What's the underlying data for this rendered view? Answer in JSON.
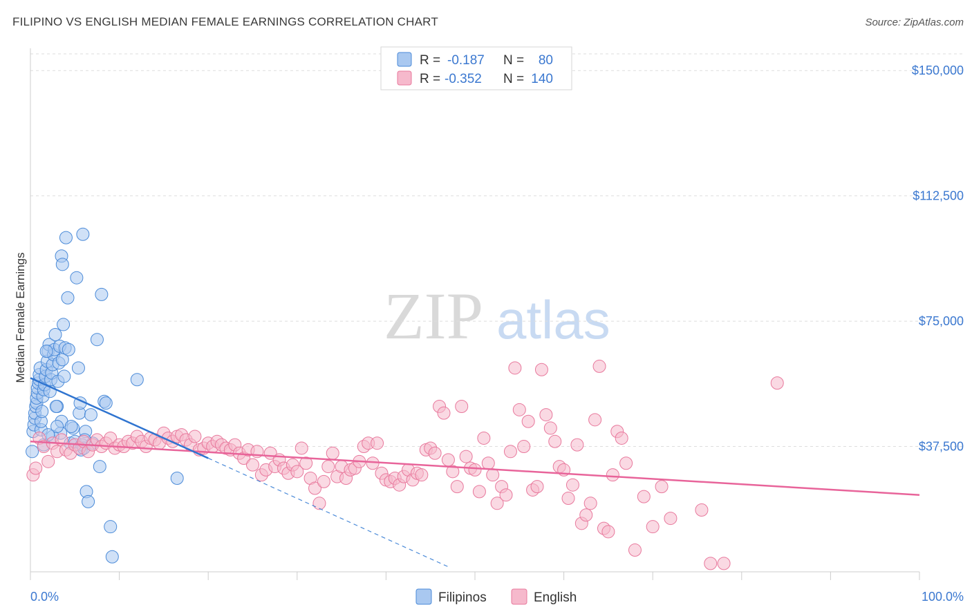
{
  "header": {
    "title": "FILIPINO VS ENGLISH MEDIAN FEMALE EARNINGS CORRELATION CHART",
    "source": "Source: ZipAtlas.com"
  },
  "watermark": {
    "zip": "ZIP",
    "atlas": "atlas"
  },
  "colors": {
    "filipino_fill": "#a9c8f0",
    "filipino_stroke": "#4a8ad8",
    "filipino_line": "#2f74d0",
    "english_fill": "#f6b9cc",
    "english_stroke": "#e8789c",
    "english_line": "#e8649a",
    "tick_text": "#3b78d0",
    "grid": "#dddddd"
  },
  "legend": {
    "rows": [
      {
        "r_label": "R =",
        "r_value": "-0.187",
        "n_label": "N =",
        "n_value": "80"
      },
      {
        "r_label": "R =",
        "r_value": "-0.352",
        "n_label": "N =",
        "n_value": "140"
      }
    ]
  },
  "chart_data": {
    "type": "scatter",
    "title": "FILIPINO VS ENGLISH MEDIAN FEMALE EARNINGS CORRELATION CHART",
    "xlabel": "",
    "ylabel": "Median Female Earnings",
    "xlim": [
      0,
      100
    ],
    "ylim": [
      0,
      155000
    ],
    "x_tick_labels": [
      "0.0%",
      "100.0%"
    ],
    "y_ticks": [
      37500,
      75000,
      112500,
      150000
    ],
    "y_tick_labels": [
      "$37,500",
      "$75,000",
      "$112,500",
      "$150,000"
    ],
    "grid": "horizontal dashed",
    "legend_position": "top-center",
    "series": [
      {
        "name": "Filipinos",
        "r": -0.187,
        "n": 80,
        "trend": {
          "x": [
            0,
            20
          ],
          "y": [
            58000,
            34000
          ],
          "extended_x": [
            20,
            47
          ],
          "extended_y": [
            34000,
            1500
          ]
        },
        "points": [
          [
            0.2,
            36000
          ],
          [
            0.3,
            42000
          ],
          [
            0.4,
            44000
          ],
          [
            0.5,
            46000
          ],
          [
            0.5,
            47500
          ],
          [
            0.6,
            49500
          ],
          [
            0.7,
            50500
          ],
          [
            0.7,
            52000
          ],
          [
            0.8,
            53500
          ],
          [
            0.8,
            55000
          ],
          [
            0.9,
            56500
          ],
          [
            1.0,
            57500
          ],
          [
            1.0,
            59000
          ],
          [
            1.1,
            61000
          ],
          [
            1.2,
            42500
          ],
          [
            1.2,
            45000
          ],
          [
            1.3,
            48000
          ],
          [
            1.4,
            52500
          ],
          [
            1.5,
            54500
          ],
          [
            1.6,
            56000
          ],
          [
            1.7,
            58500
          ],
          [
            1.8,
            60500
          ],
          [
            1.9,
            63000
          ],
          [
            2.0,
            66000
          ],
          [
            2.1,
            68000
          ],
          [
            2.2,
            54000
          ],
          [
            2.3,
            57500
          ],
          [
            2.4,
            59500
          ],
          [
            2.5,
            62000
          ],
          [
            2.6,
            65000
          ],
          [
            2.7,
            66500
          ],
          [
            2.8,
            71000
          ],
          [
            3.0,
            49500
          ],
          [
            3.1,
            57000
          ],
          [
            3.2,
            62500
          ],
          [
            3.3,
            67500
          ],
          [
            3.4,
            41500
          ],
          [
            3.5,
            45000
          ],
          [
            3.6,
            63500
          ],
          [
            3.7,
            74000
          ],
          [
            3.8,
            58500
          ],
          [
            3.9,
            67000
          ],
          [
            4.0,
            100000
          ],
          [
            4.2,
            82000
          ],
          [
            4.3,
            66500
          ],
          [
            2.5,
            40500
          ],
          [
            3.0,
            43500
          ],
          [
            3.5,
            94500
          ],
          [
            3.6,
            92000
          ],
          [
            4.5,
            38500
          ],
          [
            4.8,
            43000
          ],
          [
            5.0,
            39000
          ],
          [
            5.2,
            88000
          ],
          [
            5.4,
            61000
          ],
          [
            5.5,
            47500
          ],
          [
            5.6,
            50500
          ],
          [
            5.7,
            36500
          ],
          [
            5.8,
            38000
          ],
          [
            6.0,
            37000
          ],
          [
            6.2,
            42000
          ],
          [
            6.3,
            24000
          ],
          [
            6.5,
            21000
          ],
          [
            6.8,
            47000
          ],
          [
            7.0,
            38500
          ],
          [
            5.9,
            101000
          ],
          [
            7.5,
            69500
          ],
          [
            7.8,
            31500
          ],
          [
            8.0,
            83000
          ],
          [
            8.3,
            51000
          ],
          [
            8.5,
            50500
          ],
          [
            9.0,
            13500
          ],
          [
            9.2,
            4500
          ],
          [
            12.0,
            57500
          ],
          [
            16.5,
            28000
          ],
          [
            1.5,
            38000
          ],
          [
            2.0,
            41000
          ],
          [
            4.6,
            43500
          ],
          [
            6.1,
            39500
          ],
          [
            1.8,
            66000
          ],
          [
            2.9,
            49500
          ]
        ]
      },
      {
        "name": "English",
        "r": -0.352,
        "n": 140,
        "trend": {
          "x": [
            0,
            100
          ],
          "y": [
            39000,
            23000
          ]
        },
        "points": [
          [
            0.3,
            29000
          ],
          [
            0.6,
            31000
          ],
          [
            1.0,
            40000
          ],
          [
            1.5,
            37500
          ],
          [
            2.0,
            33000
          ],
          [
            2.5,
            38500
          ],
          [
            3.0,
            36000
          ],
          [
            3.5,
            39500
          ],
          [
            4.0,
            36500
          ],
          [
            4.5,
            35500
          ],
          [
            5.0,
            38000
          ],
          [
            5.5,
            37000
          ],
          [
            6.0,
            39000
          ],
          [
            6.5,
            36000
          ],
          [
            7.0,
            38000
          ],
          [
            7.5,
            39500
          ],
          [
            8.0,
            37500
          ],
          [
            8.5,
            38500
          ],
          [
            9.0,
            40000
          ],
          [
            9.5,
            37000
          ],
          [
            10.0,
            38000
          ],
          [
            10.5,
            37500
          ],
          [
            11.0,
            39000
          ],
          [
            11.5,
            38500
          ],
          [
            12.0,
            40500
          ],
          [
            12.5,
            39000
          ],
          [
            13.0,
            37500
          ],
          [
            13.5,
            40000
          ],
          [
            14.0,
            39500
          ],
          [
            14.5,
            38500
          ],
          [
            15.0,
            41500
          ],
          [
            15.5,
            40000
          ],
          [
            16.0,
            39000
          ],
          [
            16.5,
            40500
          ],
          [
            17.0,
            41000
          ],
          [
            17.5,
            39500
          ],
          [
            18.0,
            38000
          ],
          [
            18.5,
            40500
          ],
          [
            19.0,
            36500
          ],
          [
            19.5,
            37000
          ],
          [
            20.0,
            38500
          ],
          [
            20.5,
            37500
          ],
          [
            21.0,
            39000
          ],
          [
            21.5,
            38000
          ],
          [
            22.0,
            37000
          ],
          [
            22.5,
            36500
          ],
          [
            23.0,
            38000
          ],
          [
            23.5,
            35500
          ],
          [
            24.0,
            34000
          ],
          [
            24.5,
            36500
          ],
          [
            25.0,
            32000
          ],
          [
            25.5,
            36000
          ],
          [
            26.0,
            29000
          ],
          [
            26.5,
            30500
          ],
          [
            27.0,
            35500
          ],
          [
            27.5,
            31500
          ],
          [
            28.0,
            33500
          ],
          [
            28.5,
            31000
          ],
          [
            29.0,
            29500
          ],
          [
            29.5,
            32000
          ],
          [
            30.0,
            30000
          ],
          [
            30.5,
            37000
          ],
          [
            31.0,
            32500
          ],
          [
            31.5,
            28000
          ],
          [
            32.0,
            25000
          ],
          [
            32.5,
            20500
          ],
          [
            33.0,
            27000
          ],
          [
            33.5,
            31500
          ],
          [
            34.0,
            35500
          ],
          [
            34.5,
            28500
          ],
          [
            35.0,
            31500
          ],
          [
            35.5,
            28000
          ],
          [
            36.0,
            30500
          ],
          [
            36.5,
            31000
          ],
          [
            37.0,
            33000
          ],
          [
            37.5,
            37500
          ],
          [
            38.0,
            38500
          ],
          [
            38.5,
            32500
          ],
          [
            39.0,
            38500
          ],
          [
            39.5,
            29500
          ],
          [
            40.0,
            27500
          ],
          [
            40.5,
            27000
          ],
          [
            41.0,
            28000
          ],
          [
            41.5,
            26000
          ],
          [
            42.0,
            28500
          ],
          [
            42.5,
            30500
          ],
          [
            43.0,
            27500
          ],
          [
            43.5,
            29500
          ],
          [
            44.0,
            29000
          ],
          [
            44.5,
            36500
          ],
          [
            45.0,
            37000
          ],
          [
            45.5,
            35500
          ],
          [
            46.0,
            49500
          ],
          [
            46.5,
            47500
          ],
          [
            47.0,
            33500
          ],
          [
            47.5,
            30000
          ],
          [
            48.0,
            25500
          ],
          [
            48.5,
            49500
          ],
          [
            49.0,
            34500
          ],
          [
            49.5,
            31000
          ],
          [
            50.0,
            30500
          ],
          [
            50.5,
            24000
          ],
          [
            51.0,
            40000
          ],
          [
            51.5,
            32500
          ],
          [
            52.0,
            29000
          ],
          [
            52.5,
            20500
          ],
          [
            53.0,
            25500
          ],
          [
            53.5,
            23000
          ],
          [
            54.0,
            36000
          ],
          [
            54.5,
            61000
          ],
          [
            55.0,
            48500
          ],
          [
            55.5,
            37500
          ],
          [
            56.0,
            45000
          ],
          [
            56.5,
            24500
          ],
          [
            57.0,
            25500
          ],
          [
            57.5,
            60500
          ],
          [
            58.0,
            47000
          ],
          [
            58.5,
            43000
          ],
          [
            59.0,
            39000
          ],
          [
            59.5,
            31500
          ],
          [
            60.0,
            30500
          ],
          [
            60.5,
            22000
          ],
          [
            61.0,
            26000
          ],
          [
            61.5,
            38000
          ],
          [
            62.0,
            14500
          ],
          [
            62.5,
            17000
          ],
          [
            63.0,
            20500
          ],
          [
            63.5,
            45500
          ],
          [
            64.0,
            61500
          ],
          [
            64.5,
            13000
          ],
          [
            65.0,
            12000
          ],
          [
            65.5,
            29000
          ],
          [
            66.0,
            42000
          ],
          [
            66.5,
            40000
          ],
          [
            67.0,
            32500
          ],
          [
            68.0,
            6500
          ],
          [
            69.0,
            22500
          ],
          [
            70.0,
            13500
          ],
          [
            71.0,
            25500
          ],
          [
            72.0,
            16000
          ],
          [
            75.5,
            18500
          ],
          [
            76.5,
            2500
          ],
          [
            78.0,
            2500
          ],
          [
            84.0,
            56500
          ]
        ]
      }
    ]
  },
  "bottom_legend": {
    "items": [
      "Filipinos",
      "English"
    ]
  }
}
